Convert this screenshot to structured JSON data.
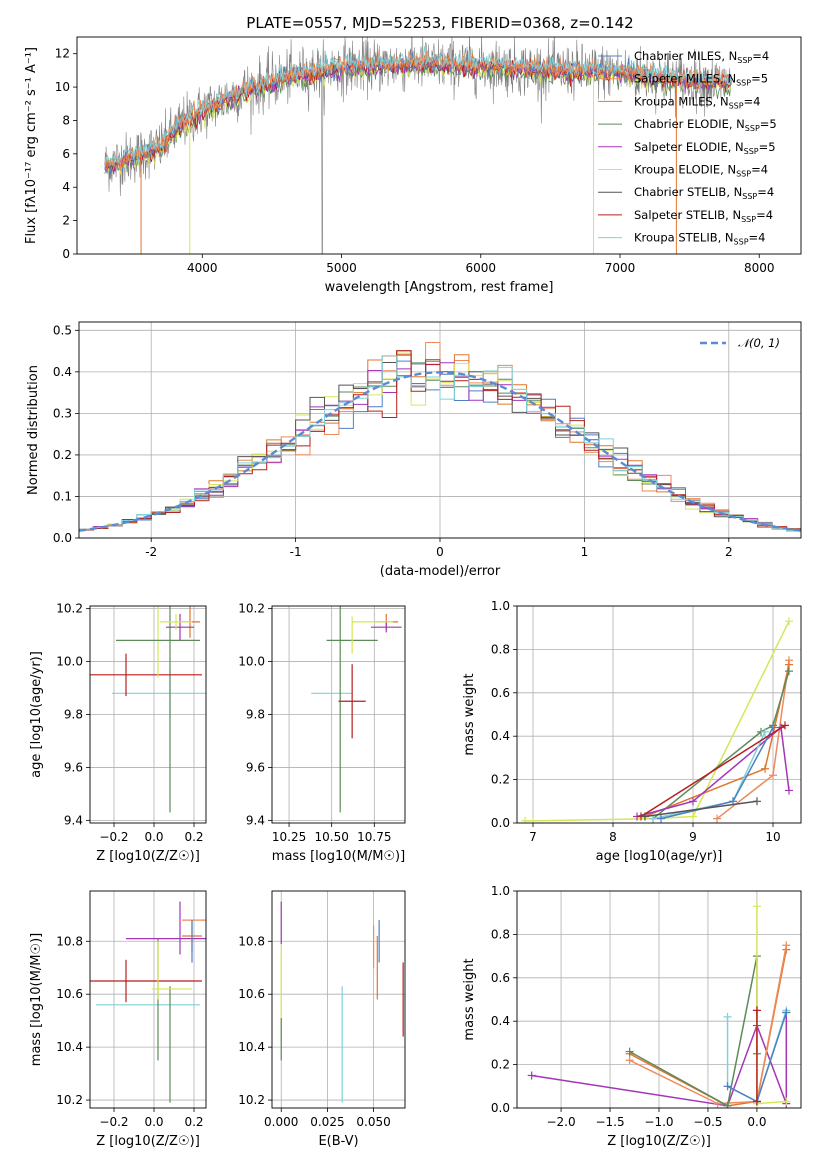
{
  "title": "PLATE=0557, MJD=52253, FIBERID=0368, z=0.142",
  "colors": {
    "Chabrier MILES": "#4f7fc4",
    "Salpeter MILES": "#ee8a5c",
    "Kroupa MILES": "#e0762f",
    "Chabrier ELODIE": "#5e8a5a",
    "Salpeter ELODIE": "#a434b8",
    "Kroupa ELODIE": "#d7e657",
    "Chabrier STELIB": "#555555",
    "Salpeter STELIB": "#b81e1e",
    "Kroupa STELIB": "#7ed3da",
    "data": "#808080",
    "gauss": "#5b8bd6",
    "grid": "#b0b0b0"
  },
  "chart_data": [
    {
      "id": "spectrum",
      "type": "line",
      "xlabel": "wavelength [Angstrom, rest frame]",
      "ylabel": "Flux [fλ10⁻¹⁷ erg cm⁻² s⁻¹ A⁻¹]",
      "xlim": [
        3100,
        8300
      ],
      "ylim": [
        0,
        13
      ],
      "xticks": [
        4000,
        5000,
        6000,
        7000,
        8000
      ],
      "yticks": [
        0,
        2,
        4,
        6,
        8,
        10,
        12
      ],
      "grid": false,
      "legend_position": "right",
      "legend": [
        {
          "name": "Chabrier MILES",
          "nssp": "4"
        },
        {
          "name": "Salpeter MILES",
          "nssp": "5"
        },
        {
          "name": "Kroupa MILES",
          "nssp": "4"
        },
        {
          "name": "Chabrier ELODIE",
          "nssp": "5"
        },
        {
          "name": "Salpeter ELODIE",
          "nssp": "5"
        },
        {
          "name": "Kroupa ELODIE",
          "nssp": "4"
        },
        {
          "name": "Chabrier STELIB",
          "nssp": "4"
        },
        {
          "name": "Salpeter STELIB",
          "nssp": "4"
        },
        {
          "name": "Kroupa STELIB",
          "nssp": "4"
        }
      ],
      "continuum": [
        [
          3300,
          5.3
        ],
        [
          3500,
          5.8
        ],
        [
          3700,
          6.4
        ],
        [
          3850,
          7.8
        ],
        [
          4000,
          8.6
        ],
        [
          4300,
          9.8
        ],
        [
          4600,
          10.6
        ],
        [
          5000,
          11.2
        ],
        [
          5500,
          11.4
        ],
        [
          6000,
          11.3
        ],
        [
          6500,
          11.0
        ],
        [
          7000,
          10.9
        ],
        [
          7500,
          10.4
        ],
        [
          7800,
          10.2
        ]
      ],
      "data_range": [
        3300,
        7800
      ]
    },
    {
      "id": "residuals",
      "type": "step",
      "xlabel": "(data-model)/error",
      "ylabel": "Normed distribution",
      "xlim": [
        -2.5,
        2.5
      ],
      "ylim": [
        0,
        0.52
      ],
      "xticks": [
        -2,
        -1,
        0,
        1,
        2
      ],
      "yticks": [
        0.0,
        0.1,
        0.2,
        0.3,
        0.4,
        0.5
      ],
      "grid": true,
      "legend_position": "top-right",
      "legend": [
        "𝒩(0, 1)"
      ],
      "bin_width": 0.1
    },
    {
      "id": "age_vs_Z",
      "type": "errorbar",
      "xlabel": "Z [log10(Z/Z☉)]",
      "ylabel": "age [log10(age/yr)]",
      "xlim": [
        -0.32,
        0.26
      ],
      "ylim": [
        9.39,
        10.21
      ],
      "xticks": [
        -0.2,
        0.0,
        0.2
      ],
      "yticks": [
        9.4,
        9.6,
        9.8,
        10.0,
        10.2
      ],
      "grid": true,
      "points": [
        {
          "series": "Kroupa STELIB",
          "x": 0.08,
          "y": 9.88,
          "xerr": 0.29,
          "yerr": 0.09
        },
        {
          "series": "Chabrier ELODIE",
          "x": 0.08,
          "y": 9.92,
          "xerr": 0.0,
          "yerr": 0.49
        },
        {
          "series": "Salpeter STELIB",
          "x": -0.14,
          "y": 9.95,
          "xerr": 0.38,
          "yerr": 0.08
        },
        {
          "series": "Kroupa ELODIE",
          "x": 0.02,
          "y": 10.08,
          "xerr": 0.0,
          "yerr": 0.14
        },
        {
          "series": "Chabrier ELODIE",
          "x": 0.02,
          "y": 10.08,
          "xerr": 0.21,
          "yerr": 0.0
        },
        {
          "series": "Kroupa MILES",
          "x": 0.18,
          "y": 10.15,
          "xerr": 0.05,
          "yerr": 0.06
        },
        {
          "series": "Salpeter ELODIE",
          "x": 0.13,
          "y": 10.13,
          "xerr": 0.07,
          "yerr": 0.05
        },
        {
          "series": "Kroupa ELODIE",
          "x": 0.11,
          "y": 10.15,
          "xerr": 0.08,
          "yerr": 0.03
        }
      ]
    },
    {
      "id": "age_vs_mass",
      "type": "errorbar",
      "xlabel": "mass [log10(M/M☉)]",
      "ylabel": "",
      "xlim": [
        10.15,
        10.93
      ],
      "ylim": [
        9.39,
        10.21
      ],
      "xticks": [
        10.25,
        10.5,
        10.75
      ],
      "xticklabels": [
        "10.25",
        "10.50",
        "10.75"
      ],
      "yticks": [
        9.4,
        9.6,
        9.8,
        10.0,
        10.2
      ],
      "grid": true,
      "points": [
        {
          "series": "Kroupa STELIB",
          "x": 10.5,
          "y": 9.88,
          "xerr": 0.12,
          "yerr": 0.0
        },
        {
          "series": "Chabrier ELODIE",
          "x": 10.55,
          "y": 9.9,
          "xerr": 0.0,
          "yerr": 0.47
        },
        {
          "series": "Salpeter STELIB",
          "x": 10.62,
          "y": 9.85,
          "xerr": 0.08,
          "yerr": 0.14
        },
        {
          "series": "Chabrier ELODIE",
          "x": 10.62,
          "y": 10.08,
          "xerr": 0.15,
          "yerr": 0.0
        },
        {
          "series": "Kroupa ELODIE",
          "x": 10.62,
          "y": 10.1,
          "xerr": 0.0,
          "yerr": 0.07
        },
        {
          "series": "Kroupa MILES",
          "x": 10.82,
          "y": 10.15,
          "xerr": 0.07,
          "yerr": 0.03
        },
        {
          "series": "Salpeter ELODIE",
          "x": 10.82,
          "y": 10.13,
          "xerr": 0.09,
          "yerr": 0.02
        },
        {
          "series": "Kroupa ELODIE",
          "x": 10.74,
          "y": 10.15,
          "xerr": 0.12,
          "yerr": 0.0
        }
      ]
    },
    {
      "id": "weight_vs_age",
      "type": "line",
      "xlabel": "age [log10(age/yr)]",
      "ylabel": "mass weight",
      "xlim": [
        6.8,
        10.35
      ],
      "ylim": [
        0,
        1.0
      ],
      "xticks": [
        7,
        8,
        9,
        10
      ],
      "yticks": [
        0.0,
        0.2,
        0.4,
        0.6,
        0.8,
        1.0
      ],
      "grid": true,
      "series": [
        {
          "name": "Kroupa ELODIE",
          "points": [
            [
              6.9,
              0.01
            ],
            [
              7.0,
              0.01
            ],
            [
              8.5,
              0.02
            ],
            [
              9.0,
              0.03
            ],
            [
              10.2,
              0.93
            ]
          ]
        },
        {
          "name": "Salpeter MILES",
          "points": [
            [
              9.3,
              0.02
            ],
            [
              10.0,
              0.22
            ],
            [
              10.2,
              0.75
            ]
          ]
        },
        {
          "name": "Kroupa MILES",
          "points": [
            [
              8.4,
              0.03
            ],
            [
              9.9,
              0.25
            ],
            [
              10.2,
              0.73
            ]
          ]
        },
        {
          "name": "Chabrier ELODIE",
          "points": [
            [
              8.5,
              0.02
            ],
            [
              9.85,
              0.42
            ],
            [
              10.0,
              0.45
            ],
            [
              10.2,
              0.7
            ]
          ]
        },
        {
          "name": "Salpeter ELODIE",
          "points": [
            [
              8.3,
              0.03
            ],
            [
              9.0,
              0.1
            ],
            [
              10.1,
              0.44
            ],
            [
              10.2,
              0.15
            ]
          ]
        },
        {
          "name": "Kroupa STELIB",
          "points": [
            [
              8.5,
              0.02
            ],
            [
              9.5,
              0.1
            ],
            [
              9.9,
              0.42
            ]
          ]
        },
        {
          "name": "Chabrier MILES",
          "points": [
            [
              8.6,
              0.02
            ],
            [
              9.5,
              0.1
            ],
            [
              10.0,
              0.44
            ]
          ]
        },
        {
          "name": "Salpeter STELIB",
          "points": [
            [
              8.35,
              0.03
            ],
            [
              10.15,
              0.45
            ]
          ]
        },
        {
          "name": "Chabrier STELIB",
          "points": [
            [
              8.4,
              0.03
            ],
            [
              9.8,
              0.1
            ]
          ]
        }
      ]
    },
    {
      "id": "mass_vs_Z",
      "type": "errorbar",
      "xlabel": "Z [log10(Z/Z☉)]",
      "ylabel": "mass [log10(M/M☉)]",
      "xlim": [
        -0.32,
        0.26
      ],
      "ylim": [
        10.17,
        10.99
      ],
      "xticks": [
        -0.2,
        0.0,
        0.2
      ],
      "yticks": [
        10.2,
        10.4,
        10.6,
        10.8
      ],
      "grid": true,
      "points": [
        {
          "series": "Kroupa STELIB",
          "x": -0.03,
          "y": 10.56,
          "xerr": 0.26,
          "yerr": 0.0
        },
        {
          "series": "Chabrier ELODIE",
          "x": 0.02,
          "y": 10.58,
          "xerr": 0.0,
          "yerr": 0.23
        },
        {
          "series": "Salpeter STELIB",
          "x": -0.14,
          "y": 10.65,
          "xerr": 0.38,
          "yerr": 0.08
        },
        {
          "series": "Chabrier ELODIE",
          "x": 0.08,
          "y": 10.41,
          "xerr": 0.0,
          "yerr": 0.22
        },
        {
          "series": "Kroupa ELODIE",
          "x": 0.09,
          "y": 10.62,
          "xerr": 0.1,
          "yerr": 0.0
        },
        {
          "series": "Kroupa ELODIE",
          "x": 0.02,
          "y": 10.69,
          "xerr": 0.0,
          "yerr": 0.11
        },
        {
          "series": "Salpeter ELODIE",
          "x": 0.06,
          "y": 10.81,
          "xerr": 0.2,
          "yerr": 0.0
        },
        {
          "series": "Kroupa MILES",
          "x": 0.19,
          "y": 10.82,
          "xerr": 0.05,
          "yerr": 0.06
        },
        {
          "series": "Salpeter ELODIE",
          "x": 0.13,
          "y": 10.85,
          "xerr": 0.0,
          "yerr": 0.1
        },
        {
          "series": "Salpeter MILES",
          "x": 0.2,
          "y": 10.88,
          "xerr": 0.06,
          "yerr": 0.0
        },
        {
          "series": "Chabrier MILES",
          "x": 0.19,
          "y": 10.8,
          "xerr": 0.0,
          "yerr": 0.08
        }
      ]
    },
    {
      "id": "mass_vs_EBV",
      "type": "errorbar",
      "xlabel": "E(B-V)",
      "ylabel": "",
      "xlim": [
        -0.005,
        0.067
      ],
      "ylim": [
        10.17,
        10.99
      ],
      "xticks": [
        0.0,
        0.025,
        0.05
      ],
      "xticklabels": [
        "0.000",
        "0.025",
        "0.050"
      ],
      "yticks": [
        10.2,
        10.4,
        10.6,
        10.8
      ],
      "grid": true,
      "points": [
        {
          "series": "Salpeter ELODIE",
          "x": 0.0,
          "y": 10.87,
          "xerr": 0.0,
          "yerr": 0.08
        },
        {
          "series": "Kroupa ELODIE",
          "x": 0.0,
          "y": 10.6,
          "xerr": 0.0,
          "yerr": 0.18
        },
        {
          "series": "Chabrier ELODIE",
          "x": 0.0,
          "y": 10.43,
          "xerr": 0.0,
          "yerr": 0.08
        },
        {
          "series": "Kroupa STELIB",
          "x": 0.033,
          "y": 10.41,
          "xerr": 0.0,
          "yerr": 0.22
        },
        {
          "series": "Salpeter MILES",
          "x": 0.05,
          "y": 10.78,
          "xerr": 0.0,
          "yerr": 0.08
        },
        {
          "series": "Kroupa MILES",
          "x": 0.052,
          "y": 10.7,
          "xerr": 0.0,
          "yerr": 0.12
        },
        {
          "series": "Chabrier MILES",
          "x": 0.053,
          "y": 10.8,
          "xerr": 0.0,
          "yerr": 0.08
        },
        {
          "series": "Salpeter STELIB",
          "x": 0.066,
          "y": 10.58,
          "xerr": 0.0,
          "yerr": 0.14
        }
      ]
    },
    {
      "id": "weight_vs_Z",
      "type": "line",
      "xlabel": "Z [log10(Z/Z☉)]",
      "ylabel": "mass weight",
      "xlim": [
        -2.45,
        0.45
      ],
      "ylim": [
        0,
        1.0
      ],
      "xticks": [
        -2.0,
        -1.5,
        -1.0,
        -0.5,
        0.0
      ],
      "yticks": [
        0.0,
        0.2,
        0.4,
        0.6,
        0.8,
        1.0
      ],
      "grid": true,
      "series": [
        {
          "name": "Salpeter ELODIE",
          "points": [
            [
              -2.3,
              0.15
            ],
            [
              -0.3,
              0.01
            ],
            [
              0.0,
              0.38
            ],
            [
              0.3,
              0.02
            ],
            [
              0.3,
              0.44
            ]
          ]
        },
        {
          "name": "Kroupa MILES",
          "points": [
            [
              -1.3,
              0.25
            ],
            [
              -0.3,
              0.01
            ],
            [
              0.0,
              0.03
            ],
            [
              0.3,
              0.73
            ]
          ]
        },
        {
          "name": "Salpeter MILES",
          "points": [
            [
              -1.3,
              0.22
            ],
            [
              -0.4,
              0.02
            ],
            [
              0.0,
              0.03
            ],
            [
              0.3,
              0.75
            ]
          ]
        },
        {
          "name": "Chabrier ELODIE",
          "points": [
            [
              -1.3,
              0.26
            ],
            [
              -0.3,
              0.01
            ],
            [
              0.0,
              0.7
            ],
            [
              0.0,
              0.25
            ]
          ]
        },
        {
          "name": "Kroupa ELODIE",
          "points": [
            [
              0.0,
              0.93
            ],
            [
              0.0,
              0.02
            ],
            [
              0.3,
              0.03
            ]
          ]
        },
        {
          "name": "Kroupa STELIB",
          "points": [
            [
              -0.3,
              0.42
            ],
            [
              -0.3,
              0.1
            ],
            [
              0.0,
              0.03
            ],
            [
              0.3,
              0.45
            ]
          ]
        },
        {
          "name": "Chabrier MILES",
          "points": [
            [
              -0.3,
              0.1
            ],
            [
              0.0,
              0.03
            ],
            [
              0.3,
              0.44
            ]
          ]
        },
        {
          "name": "Salpeter STELIB",
          "points": [
            [
              0.0,
              0.45
            ],
            [
              0.0,
              0.03
            ]
          ]
        }
      ]
    }
  ]
}
